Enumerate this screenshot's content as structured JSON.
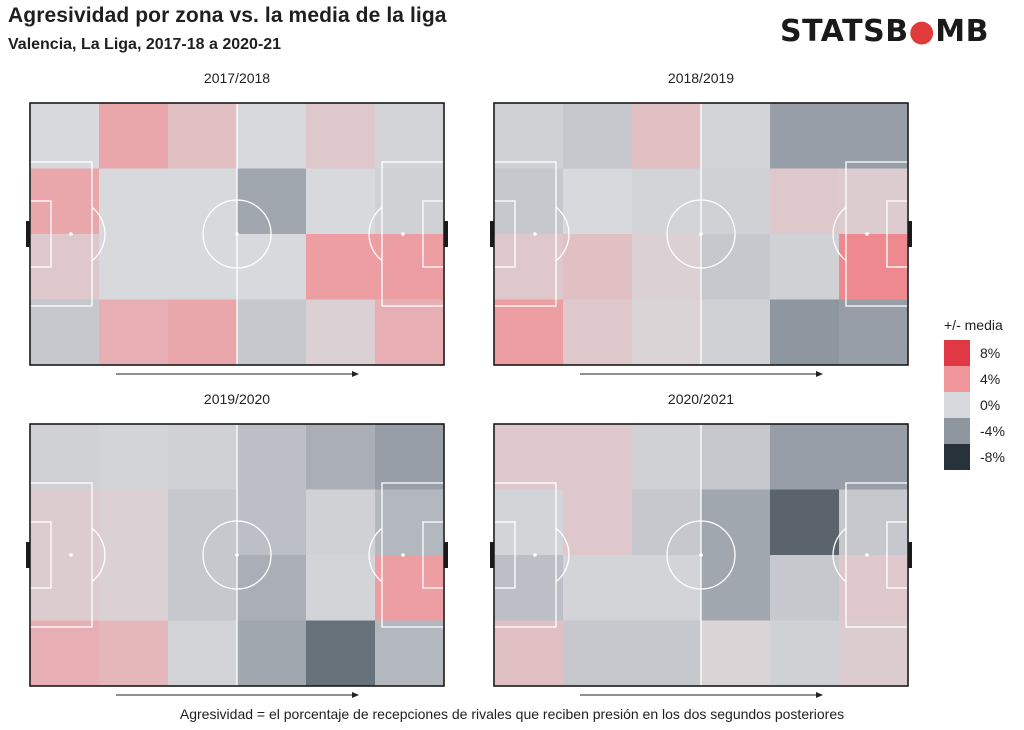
{
  "header": {
    "title": "Agresividad por zona vs. la media de la liga",
    "subtitle": "Valencia, La Liga, 2017-18 a 2020-21",
    "logo_text_1": "STATSB",
    "logo_text_2": "MB",
    "logo_colors": {
      "dark": "#1a1a1a",
      "red": "#e03b3b"
    }
  },
  "legend": {
    "title": "+/- media",
    "items": [
      {
        "label": "8%",
        "value": 8,
        "color": "#e03844"
      },
      {
        "label": "4%",
        "value": 4,
        "color": "#f0969a"
      },
      {
        "label": "0%",
        "value": 0,
        "color": "#d8d9dc"
      },
      {
        "label": "-4%",
        "value": -4,
        "color": "#8e96a0"
      },
      {
        "label": "-8%",
        "value": -8,
        "color": "#27323a"
      }
    ]
  },
  "caption": "Agresividad = el porcentaje de recepciones de rivales que reciben presión en los dos segundos posteriores",
  "chart_data": {
    "type": "heatmap",
    "units": "% vs. media de la liga",
    "color_scale": {
      "min": -8,
      "max": 8
    },
    "grid": {
      "columns": 6,
      "rows": 4
    },
    "direction_of_attack": "left-to-right",
    "panels": [
      {
        "title": "2017/2018",
        "values": [
          [
            0,
            3,
            1.5,
            0,
            1,
            -0.3
          ],
          [
            3,
            0,
            0,
            -3,
            0,
            -0.5
          ],
          [
            1,
            0,
            0,
            0,
            3.5,
            3.5
          ],
          [
            -1,
            2.5,
            3,
            -1,
            0.5,
            2.5
          ]
        ]
      },
      {
        "title": "2018/2019",
        "values": [
          [
            -0.5,
            -1,
            1.5,
            -0.3,
            -3.5,
            -3.5
          ],
          [
            -1,
            0,
            -0.3,
            -0.5,
            1,
            0.8
          ],
          [
            1,
            1.5,
            0.5,
            -1,
            -0.5,
            4.5
          ],
          [
            3.5,
            1,
            0.3,
            -0.5,
            -4,
            -3.5
          ]
        ]
      },
      {
        "title": "2019/2020",
        "values": [
          [
            -0.5,
            -0.3,
            -0.5,
            -1.5,
            -2.5,
            -3.5
          ],
          [
            0.8,
            0.5,
            -1,
            -1.5,
            -0.5,
            -2
          ],
          [
            0.8,
            0.5,
            -1,
            -2.5,
            -0.3,
            3.5
          ],
          [
            2.5,
            2,
            -0.3,
            -3,
            -5.5,
            -2
          ]
        ]
      },
      {
        "title": "2020/2021",
        "values": [
          [
            1,
            1,
            -0.5,
            -1,
            -3.5,
            -3.5
          ],
          [
            -0.3,
            1,
            -1,
            -3,
            -6,
            -1
          ],
          [
            -1.5,
            -0.3,
            -0.3,
            -3,
            -1,
            1
          ],
          [
            1.5,
            -1,
            -1,
            0.3,
            -0.5,
            0.8
          ]
        ]
      }
    ]
  }
}
